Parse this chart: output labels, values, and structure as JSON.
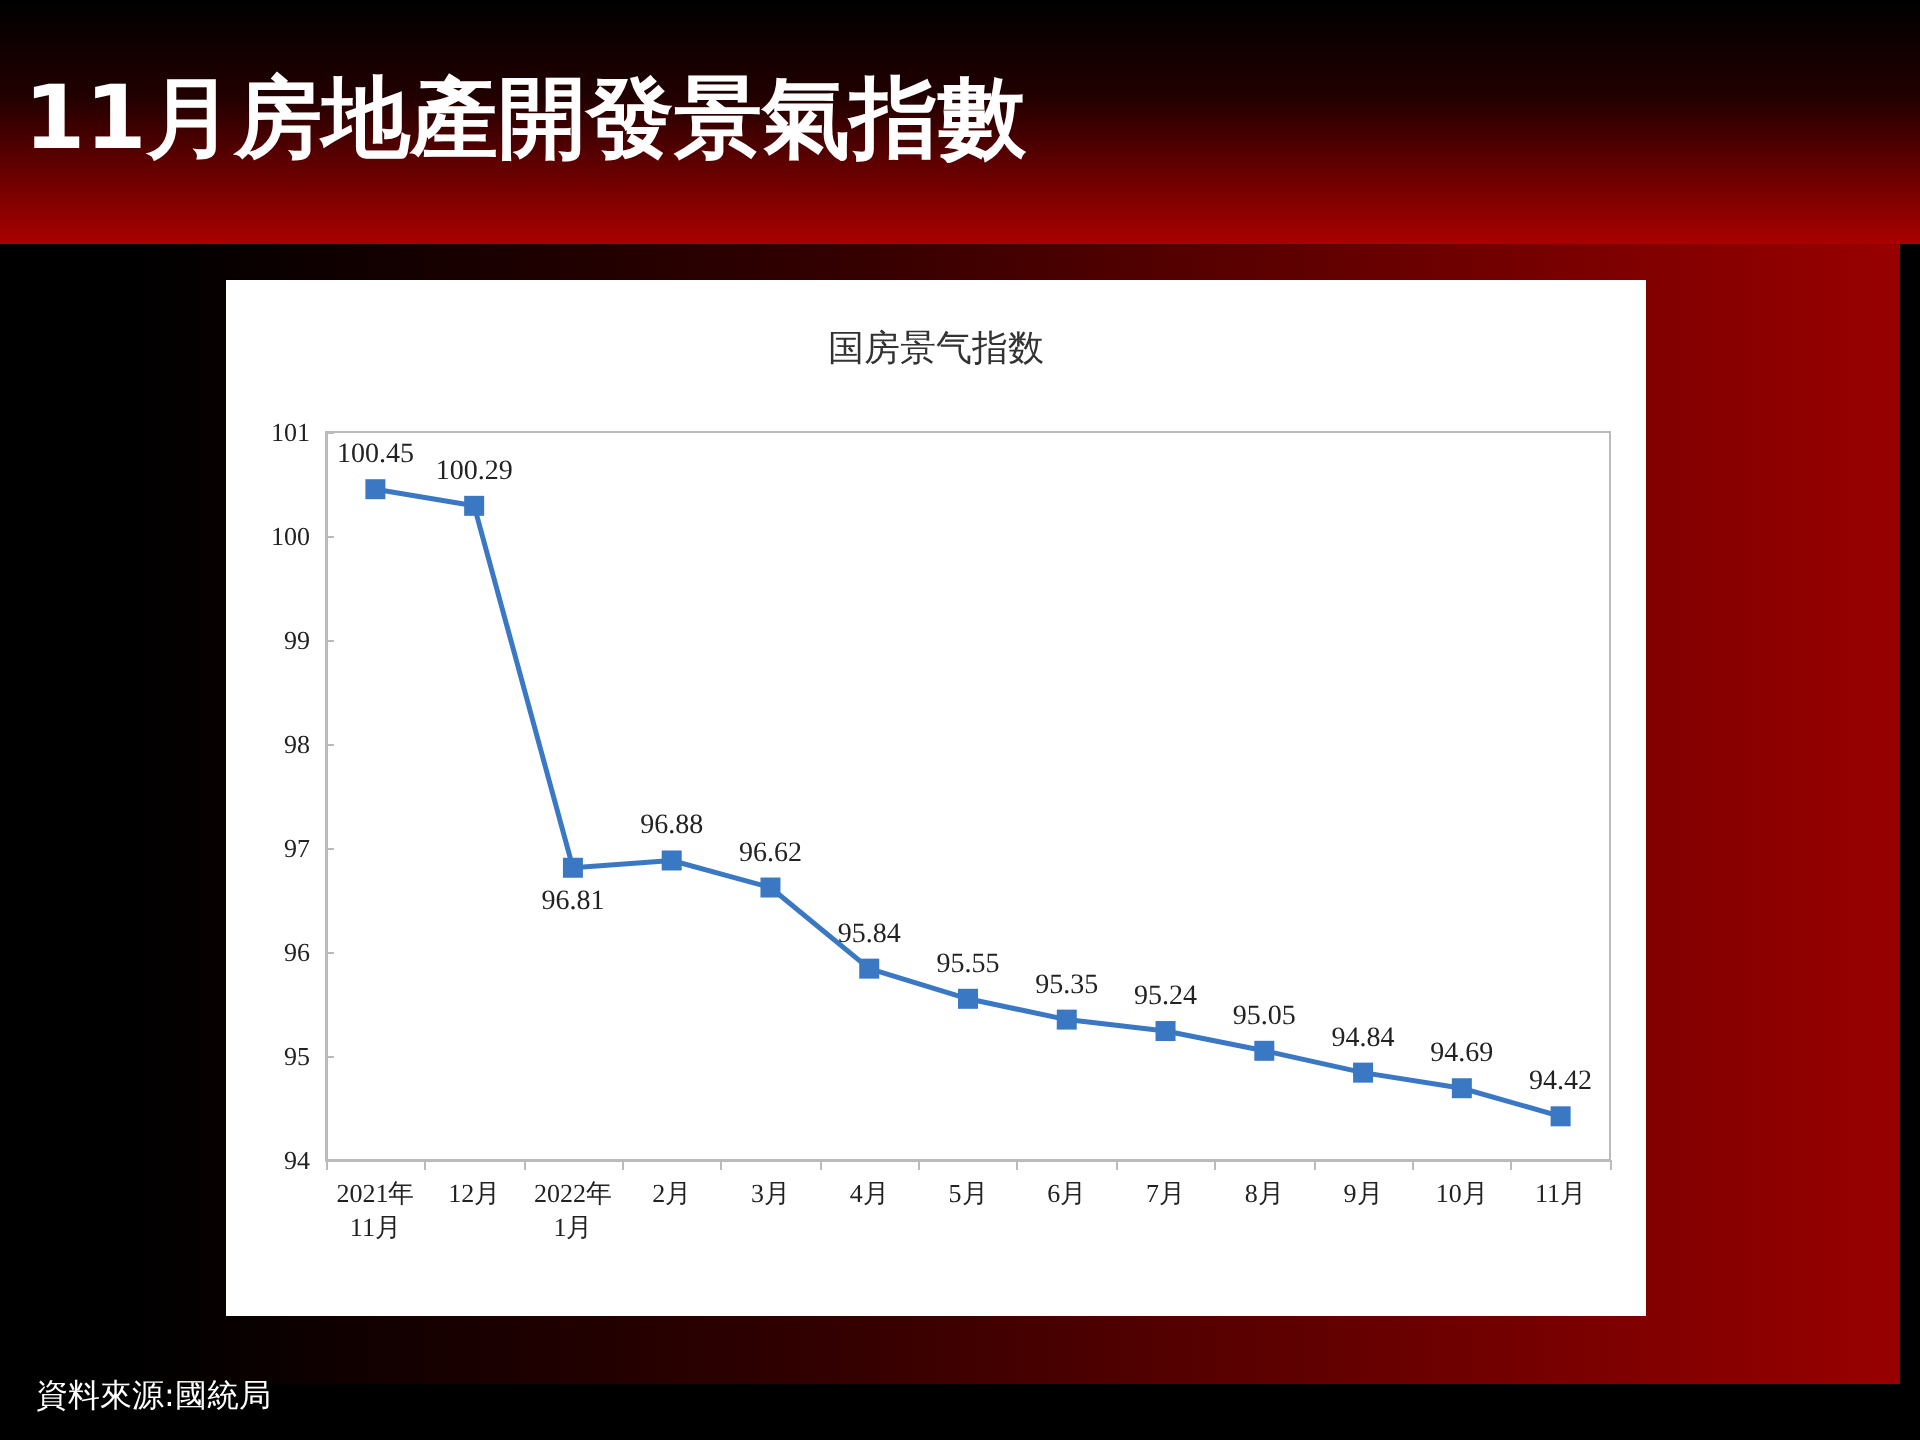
{
  "chart_data": {
    "type": "line",
    "title": "11月房地產開發景氣指數",
    "subtitle": "国房景气指数",
    "categories": [
      "2021年\n11月",
      "12月",
      "2022年\n1月",
      "2月",
      "3月",
      "4月",
      "5月",
      "6月",
      "7月",
      "8月",
      "9月",
      "10月",
      "11月"
    ],
    "series": [
      {
        "color": "#3a78c4",
        "values": [
          100.45,
          100.29,
          96.81,
          96.88,
          96.62,
          95.84,
          95.55,
          95.35,
          95.24,
          95.05,
          94.84,
          94.69,
          94.42
        ]
      }
    ],
    "ylim": [
      94,
      101
    ],
    "yticks": [
      94,
      95,
      96,
      97,
      98,
      99,
      100,
      101
    ],
    "data_labels": true,
    "marker": "square",
    "line_style": "solid",
    "grid": false,
    "annotations": [
      "資料來源:國統局"
    ]
  }
}
